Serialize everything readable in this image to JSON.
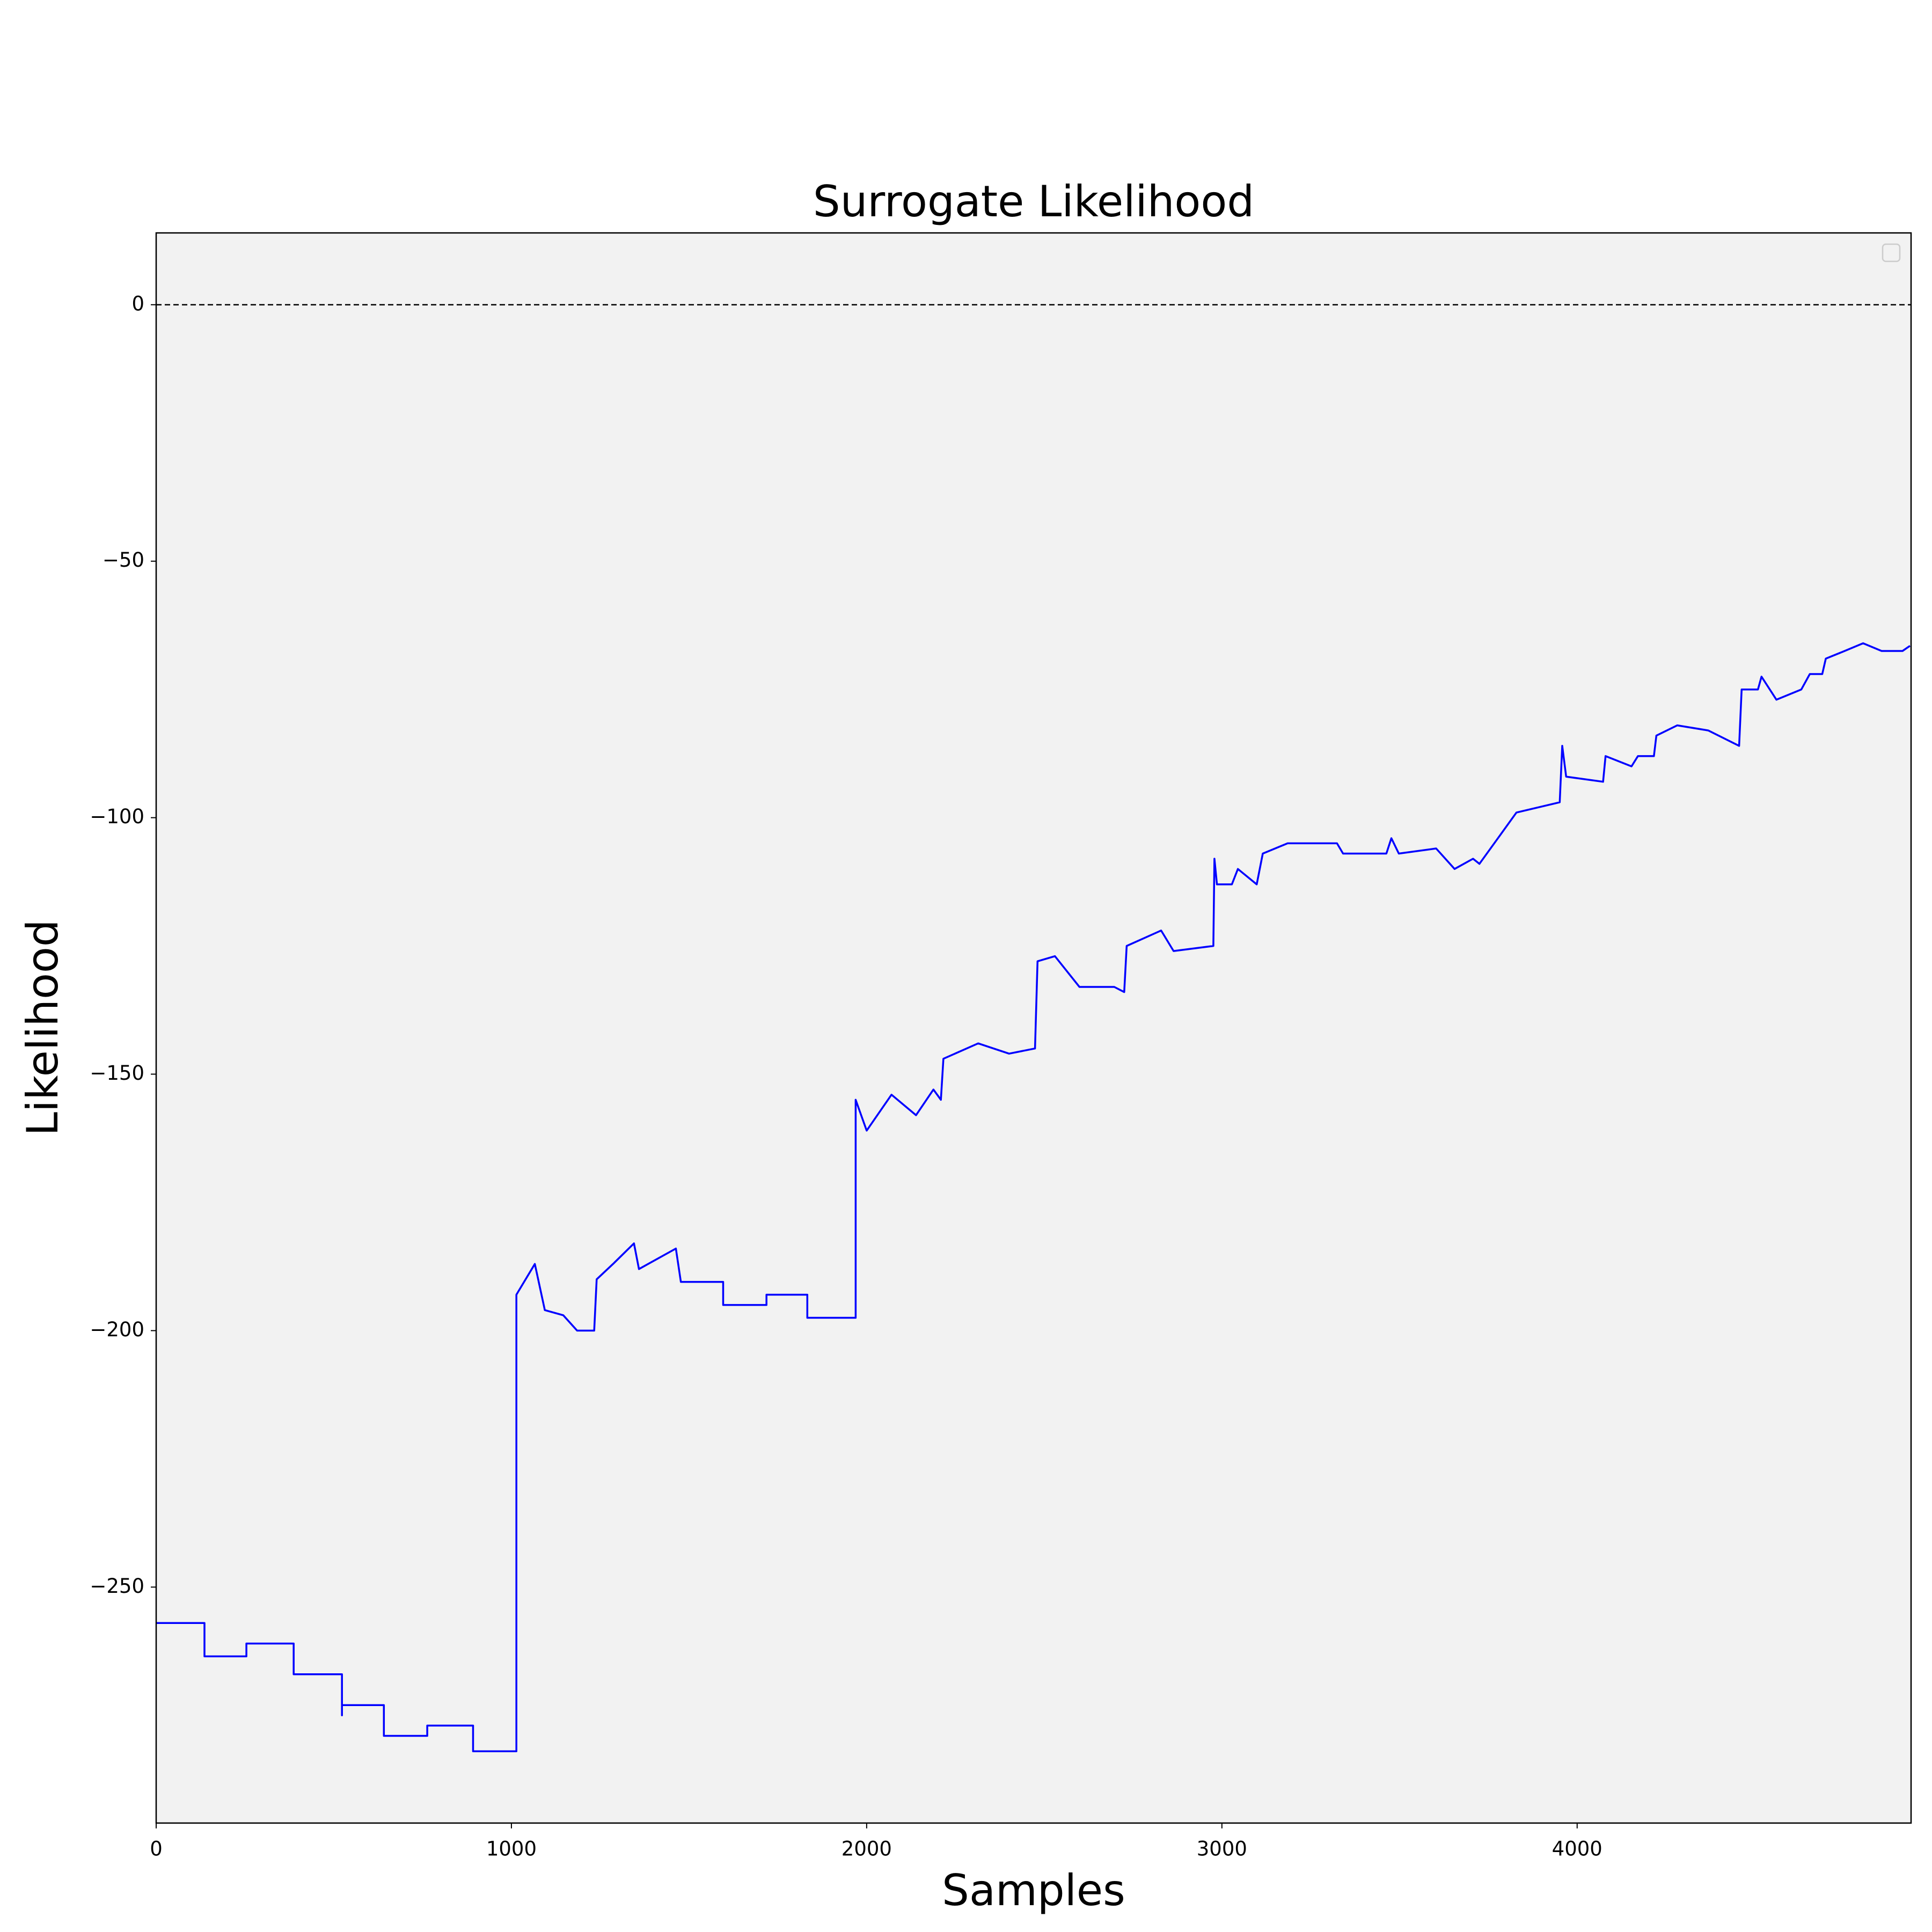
{
  "chart_data": {
    "type": "line",
    "title": "Surrogate  Likelihood",
    "x_label": "Samples",
    "y_label": "Likelihood",
    "color": "#0000ff",
    "background": "#f2f2f2",
    "hline": 0,
    "xlim": [
      0,
      4940
    ],
    "ylim": [
      -296,
      14
    ],
    "xticks": [
      0,
      1000,
      2000,
      3000,
      4000
    ],
    "yticks": [
      {
        "value": -250,
        "label": "−250"
      },
      {
        "value": -200,
        "label": "−200"
      },
      {
        "value": -150,
        "label": "−150"
      },
      {
        "value": -100,
        "label": "−100"
      },
      {
        "value": -50,
        "label": "−50"
      },
      0
    ],
    "x": [
      0,
      136,
      136,
      254,
      254,
      387,
      387,
      523,
      523,
      523,
      641,
      641,
      763,
      763,
      892,
      892,
      1014,
      1014,
      1066,
      1094,
      1146,
      1185,
      1233,
      1240,
      1286,
      1345,
      1359,
      1463,
      1477,
      1596,
      1596,
      1718,
      1718,
      1833,
      1833,
      1969,
      1969,
      2000,
      2070,
      2139,
      2188,
      2209,
      2216,
      2314,
      2401,
      2474,
      2481,
      2530,
      2599,
      2697,
      2725,
      2732,
      2829,
      2864,
      2976,
      2979,
      2986,
      3028,
      3045,
      3098,
      3115,
      3185,
      3324,
      3341,
      3463,
      3477,
      3498,
      3603,
      3655,
      3707,
      3725,
      3777,
      3829,
      3951,
      3958,
      3969,
      4073,
      4080,
      4153,
      4171,
      4216,
      4223,
      4282,
      4369,
      4456,
      4463,
      4509,
      4519,
      4561,
      4631,
      4655,
      4690,
      4700,
      4753,
      4805,
      4857,
      4916,
      4937
    ],
    "values": [
      -257,
      -257,
      -263.5,
      -263.5,
      -261,
      -261,
      -267,
      -267,
      -275,
      -273,
      -273,
      -279,
      -279,
      -277,
      -277,
      -282,
      -282,
      -193,
      -187,
      -196,
      -197,
      -200,
      -200,
      -190,
      -187,
      -183,
      -188,
      -184,
      -190.5,
      -190.5,
      -195,
      -195,
      -193,
      -193,
      -197.5,
      -197.5,
      -155,
      -161,
      -154,
      -158,
      -153,
      -155,
      -147,
      -144,
      -146,
      -145,
      -128,
      -127,
      -133,
      -133,
      -134,
      -125,
      -122,
      -126,
      -125,
      -108,
      -113,
      -113,
      -110,
      -113,
      -107,
      -105,
      -105,
      -107,
      -107,
      -104,
      -107,
      -106,
      -110,
      -108,
      -109,
      -104,
      -99,
      -97,
      -86,
      -92,
      -93,
      -88,
      -90,
      -88,
      -88,
      -84,
      -82,
      -83,
      -86,
      -75,
      -75,
      -72.5,
      -77,
      -75,
      -72,
      -72,
      -69,
      -67.5,
      -66,
      -67.5,
      -67.5,
      -66.5
    ]
  }
}
